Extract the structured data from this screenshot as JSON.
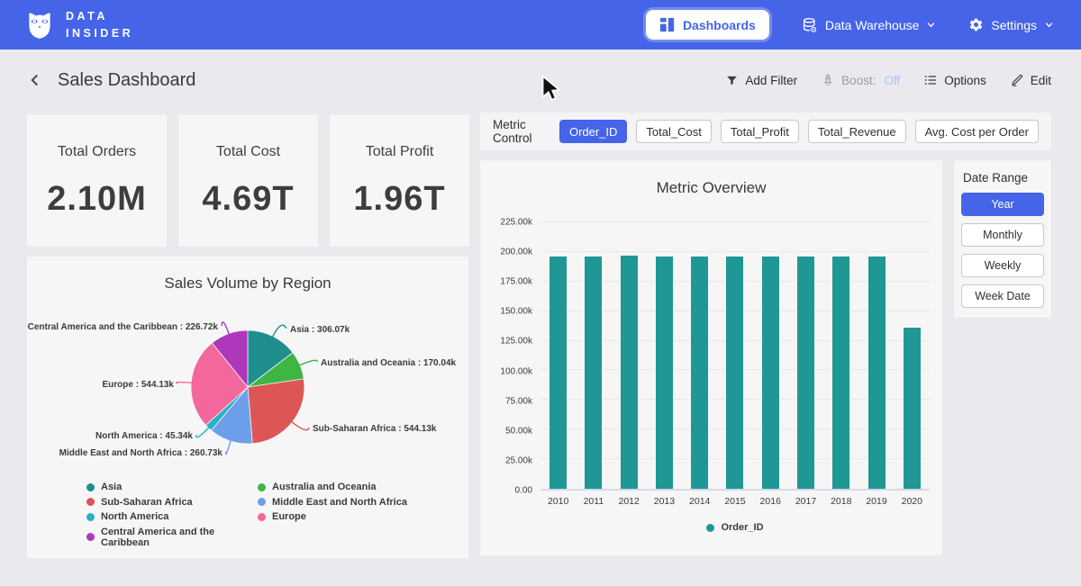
{
  "nav": {
    "brand_line1": "DATA",
    "brand_line2": "INSIDER",
    "dashboards_label": "Dashboards",
    "data_warehouse_label": "Data Warehouse",
    "settings_label": "Settings"
  },
  "header": {
    "title": "Sales Dashboard",
    "add_filter_label": "Add Filter",
    "boost_label": "Boost:",
    "boost_state": "Off",
    "options_label": "Options",
    "edit_label": "Edit"
  },
  "kpis": [
    {
      "label": "Total Orders",
      "value": "2.10M"
    },
    {
      "label": "Total Cost",
      "value": "4.69T"
    },
    {
      "label": "Total Profit",
      "value": "1.96T"
    }
  ],
  "metric_control": {
    "label": "Metric Control",
    "options": [
      "Order_ID",
      "Total_Cost",
      "Total_Profit",
      "Total_Revenue",
      "Avg. Cost per Order"
    ],
    "active": "Order_ID"
  },
  "date_range": {
    "label": "Date Range",
    "options": [
      "Year",
      "Monthly",
      "Weekly",
      "Week Date"
    ],
    "active": "Year"
  },
  "chart_data": [
    {
      "type": "bar",
      "title": "Metric Overview",
      "categories": [
        "2010",
        "2011",
        "2012",
        "2013",
        "2014",
        "2015",
        "2016",
        "2017",
        "2018",
        "2019",
        "2020"
      ],
      "series": [
        {
          "name": "Order_ID",
          "color": "#1f9795",
          "values": [
            196100,
            195900,
            196900,
            196200,
            195800,
            196000,
            196300,
            196100,
            195800,
            196500,
            135900
          ]
        }
      ],
      "xlabel": "",
      "ylabel": "",
      "ylim": [
        0,
        225000
      ],
      "ytick_step": 25000,
      "ytick_labels": [
        "0.00",
        "25.00k",
        "50.00k",
        "75.00k",
        "100.00k",
        "125.00k",
        "150.00k",
        "175.00k",
        "200.00k",
        "225.00k"
      ],
      "grid": true,
      "legend_position": "bottom"
    },
    {
      "type": "pie",
      "title": "Sales Volume by Region",
      "slices": [
        {
          "label": "Asia",
          "value": 306070,
          "display": "306.07k",
          "color": "#1e8e8e"
        },
        {
          "label": "Australia and Oceania",
          "value": 170040,
          "display": "170.04k",
          "color": "#3fb544"
        },
        {
          "label": "Sub-Saharan Africa",
          "value": 544130,
          "display": "544.13k",
          "color": "#dd5656"
        },
        {
          "label": "Middle East and North Africa",
          "value": 260730,
          "display": "260.73k",
          "color": "#6d9eea"
        },
        {
          "label": "North America",
          "value": 45340,
          "display": "45.34k",
          "color": "#27b2c4"
        },
        {
          "label": "Europe",
          "value": 544130,
          "display": "544.13k",
          "color": "#f4679d"
        },
        {
          "label": "Central America and the Caribbean",
          "value": 226720,
          "display": "226.72k",
          "color": "#ae37bc"
        }
      ],
      "legend_position": "bottom"
    }
  ],
  "colors": {
    "accent_blue": "#4564e8",
    "bar_teal": "#1f9795",
    "page_bg": "#e9e9ee",
    "card_bg": "#f6f6f7"
  }
}
